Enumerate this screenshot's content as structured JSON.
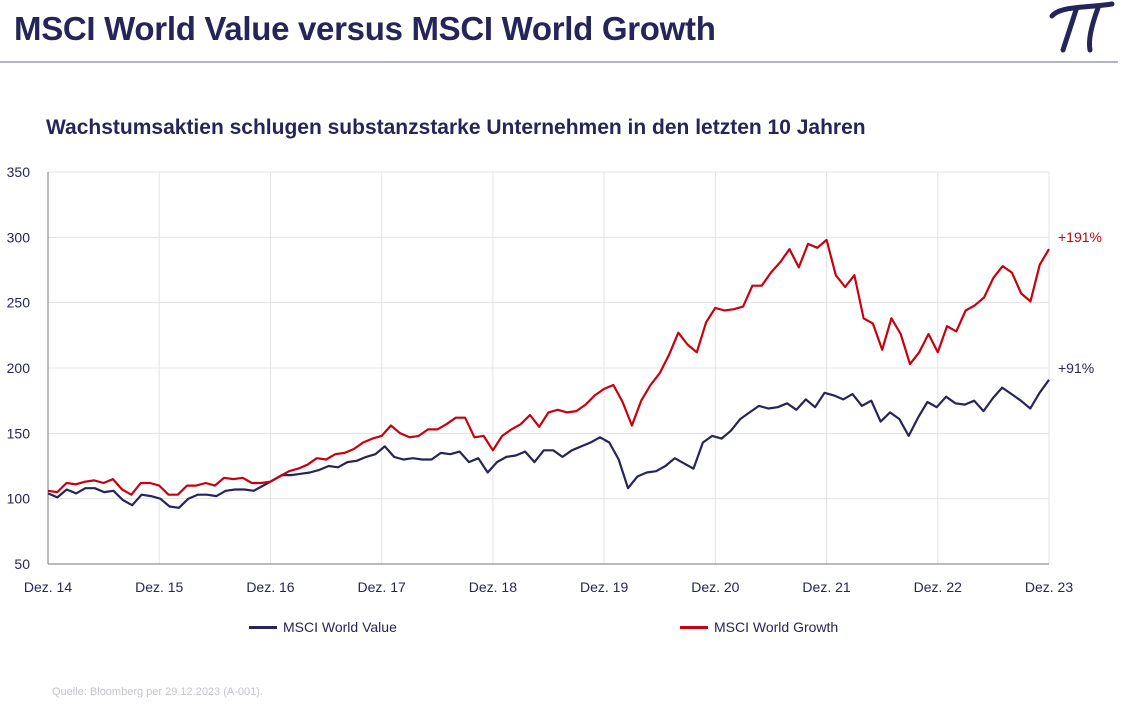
{
  "header": {
    "title": "MSCI World Value versus MSCI World Growth"
  },
  "colors": {
    "value": "#25255a",
    "growth": "#c8000f",
    "grid": "#e3e3e3",
    "axis": "#7a7a7a"
  },
  "footer": {
    "source": "Quelle: Bloomberg per 29.12.2023 (A-001)."
  },
  "chart_data": {
    "type": "line",
    "title": "Wachstumsaktien schlugen substanzstarke Unternehmen in den letzten 10 Jahren",
    "xlabel": "",
    "ylabel": "",
    "ylim": [
      50,
      350
    ],
    "yticks": [
      50,
      100,
      150,
      200,
      250,
      300,
      350
    ],
    "grid": true,
    "legend_position": "bottom",
    "x_tick_labels": [
      "Dez. 14",
      "Dez. 15",
      "Dez. 16",
      "Dez. 17",
      "Dez. 18",
      "Dez. 19",
      "Dez. 20",
      "Dez. 21",
      "Dez. 22",
      "Dez. 23"
    ],
    "x_start": "2014-12",
    "x_end": "2023-12",
    "series": [
      {
        "name": "MSCI World Value",
        "end_label": "+91%",
        "values": [
          104,
          101,
          107,
          104,
          108,
          108,
          105,
          106,
          99,
          95,
          103,
          102,
          100,
          94,
          93,
          100,
          103,
          103,
          102,
          106,
          107,
          107,
          106,
          110,
          114,
          118,
          118,
          119,
          120,
          122,
          125,
          124,
          128,
          129,
          132,
          134,
          140,
          132,
          130,
          131,
          130,
          130,
          135,
          134,
          136,
          128,
          131,
          120,
          128,
          132,
          133,
          136,
          128,
          137,
          137,
          132,
          137,
          140,
          143,
          147,
          143,
          130,
          108,
          117,
          120,
          121,
          125,
          131,
          127,
          123,
          143,
          148,
          146,
          152,
          161,
          166,
          171,
          169,
          170,
          173,
          168,
          176,
          170,
          181,
          179,
          176,
          180,
          171,
          175,
          159,
          166,
          161,
          148,
          162,
          174,
          170,
          178,
          173,
          172,
          175,
          167,
          177,
          185,
          180,
          175,
          169,
          181,
          191
        ]
      },
      {
        "name": "MSCI World Growth",
        "end_label": "+191%",
        "values": [
          106,
          105,
          112,
          111,
          113,
          114,
          112,
          115,
          107,
          103,
          112,
          112,
          110,
          103,
          103,
          110,
          110,
          112,
          110,
          116,
          115,
          116,
          112,
          112,
          113,
          117,
          121,
          123,
          126,
          131,
          130,
          134,
          135,
          138,
          143,
          146,
          148,
          156,
          150,
          147,
          148,
          153,
          153,
          157,
          162,
          162,
          147,
          148,
          137,
          148,
          153,
          157,
          164,
          155,
          166,
          168,
          166,
          167,
          172,
          179,
          184,
          187,
          174,
          156,
          175,
          187,
          196,
          210,
          227,
          218,
          212,
          235,
          246,
          244,
          245,
          247,
          263,
          263,
          273,
          281,
          291,
          277,
          295,
          292,
          298,
          271,
          262,
          271,
          238,
          234,
          214,
          238,
          226,
          203,
          212,
          226,
          212,
          232,
          228,
          244,
          248,
          254,
          269,
          278,
          273,
          257,
          251,
          279,
          291
        ]
      }
    ]
  }
}
